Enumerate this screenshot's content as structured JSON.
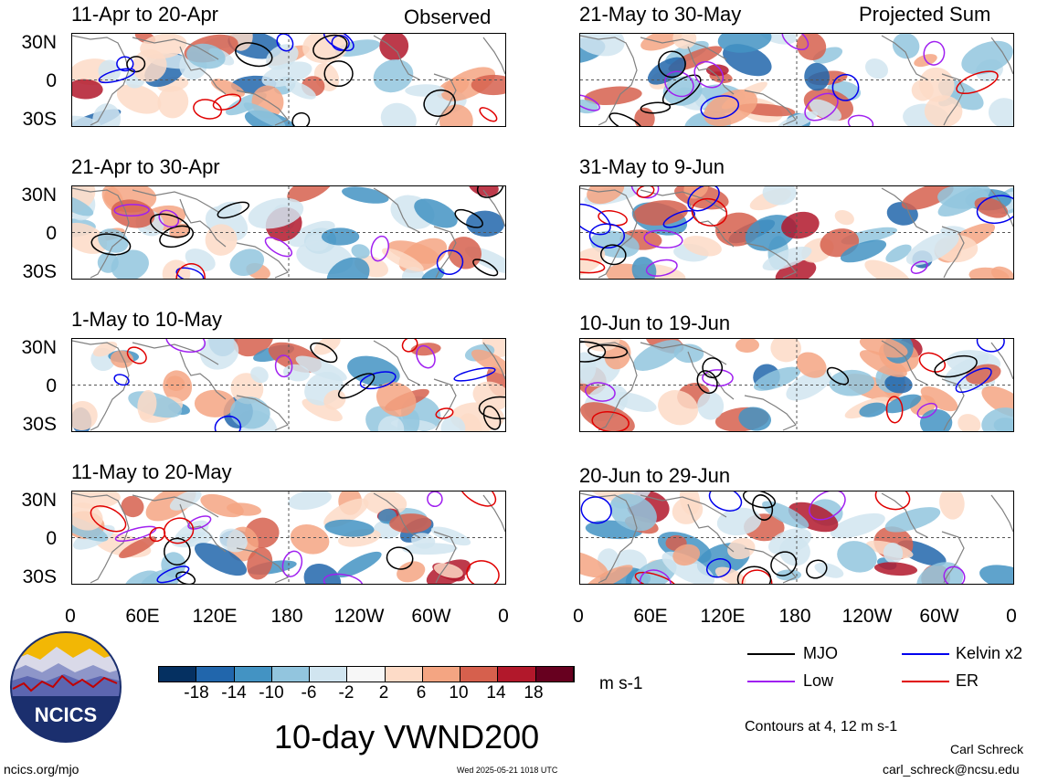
{
  "headers": {
    "observed": "Observed",
    "projected": "Projected Sum"
  },
  "panels_left": [
    {
      "title": "11-Apr to 20-Apr"
    },
    {
      "title": "21-Apr to 30-Apr"
    },
    {
      "title": "1-May to 10-May"
    },
    {
      "title": "11-May to 20-May"
    }
  ],
  "panels_right": [
    {
      "title": "21-May to 30-May"
    },
    {
      "title": "31-May to 9-Jun"
    },
    {
      "title": "10-Jun to 19-Jun"
    },
    {
      "title": "20-Jun to 29-Jun"
    }
  ],
  "lat_labels": [
    "30N",
    "0",
    "30S"
  ],
  "lon_labels": [
    "0",
    "60E",
    "120E",
    "180",
    "120W",
    "60W",
    "0"
  ],
  "colorbar": {
    "labels": [
      "-18",
      "-14",
      "-10",
      "-6",
      "-2",
      "2",
      "6",
      "10",
      "14",
      "18"
    ],
    "colors": [
      "#053061",
      "#2166ac",
      "#4393c3",
      "#92c5de",
      "#d1e5f0",
      "#f7f7f7",
      "#fddbc7",
      "#f4a582",
      "#d6604d",
      "#b2182b",
      "#67001f"
    ],
    "units": "m s-1"
  },
  "legend": [
    {
      "label": "MJO",
      "color": "#000000"
    },
    {
      "label": "Kelvin x2",
      "color": "#0000ee"
    },
    {
      "label": "Low",
      "color": "#a020f0"
    },
    {
      "label": "ER",
      "color": "#e00000"
    }
  ],
  "contours_note": "Contours at 4, 12 m s-1",
  "main_title": "10-day VWND200",
  "logo_text": "NCICS",
  "footer": {
    "website": "ncics.org/mjo",
    "timestamp": "Wed 2025-05-21 1018 UTC",
    "author": "Carl Schreck",
    "email": "carl_schreck@ncsu.edu"
  }
}
